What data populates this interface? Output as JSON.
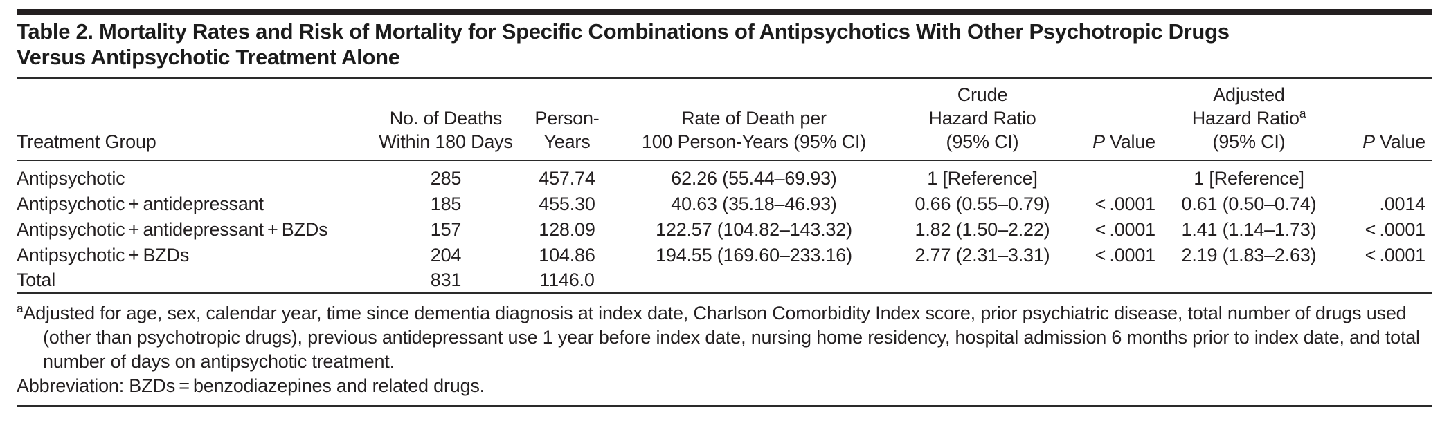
{
  "title": {
    "line1": "Table 2. Mortality Rates and Risk of Mortality for Specific Combinations of Antipsychotics With Other Psychotropic Drugs",
    "line2": "Versus Antipsychotic Treatment Alone"
  },
  "columns": [
    {
      "id": "treatment-group",
      "lines": [
        "Treatment Group"
      ]
    },
    {
      "id": "no-of-deaths",
      "lines": [
        "No. of Deaths",
        "Within 180 Days"
      ]
    },
    {
      "id": "person-years",
      "lines": [
        "Person-Years"
      ]
    },
    {
      "id": "rate-of-death",
      "lines": [
        "Rate of Death per",
        "100 Person-Years (95% CI)"
      ]
    },
    {
      "id": "crude-hazard-ratio",
      "lines": [
        "Crude",
        "Hazard Ratio",
        "(95% CI)"
      ]
    },
    {
      "id": "crude-p-value",
      "p": "P",
      "value": "Value"
    },
    {
      "id": "adjusted-hazard-ratio",
      "lines": [
        "Adjusted",
        "Hazard Ratio",
        "(95% CI)"
      ],
      "sup": "a"
    },
    {
      "id": "adjusted-p-value",
      "p": "P",
      "value": "Value"
    }
  ],
  "rows": [
    {
      "group": "Antipsychotic",
      "deaths": "285",
      "person_years": "457.74",
      "rate": "62.26 (55.44–69.93)",
      "crude_hr": "1 [Reference]",
      "crude_p": "",
      "adjusted_hr": "1 [Reference]",
      "adjusted_p": ""
    },
    {
      "group": "Antipsychotic + antidepressant",
      "deaths": "185",
      "person_years": "455.30",
      "rate": "40.63 (35.18–46.93)",
      "crude_hr": "0.66 (0.55–0.79)",
      "crude_p": "< .0001",
      "adjusted_hr": "0.61 (0.50–0.74)",
      "adjusted_p": ".0014"
    },
    {
      "group": "Antipsychotic + antidepressant + BZDs",
      "deaths": "157",
      "person_years": "128.09",
      "rate": "122.57 (104.82–143.32)",
      "crude_hr": "1.82 (1.50–2.22)",
      "crude_p": "< .0001",
      "adjusted_hr": "1.41 (1.14–1.73)",
      "adjusted_p": "< .0001"
    },
    {
      "group": "Antipsychotic + BZDs",
      "deaths": "204",
      "person_years": "104.86",
      "rate": "194.55 (169.60–233.16)",
      "crude_hr": "2.77 (2.31–3.31)",
      "crude_p": "< .0001",
      "adjusted_hr": "2.19 (1.83–2.63)",
      "adjusted_p": "< .0001"
    },
    {
      "group": "Total",
      "deaths": "831",
      "person_years": "1146.0",
      "rate": "",
      "crude_hr": "",
      "crude_p": "",
      "adjusted_hr": "",
      "adjusted_p": ""
    }
  ],
  "footnotes": {
    "marker": "a",
    "adjusted": "Adjusted for age, sex, calendar year, time since dementia diagnosis at index date, Charlson Comorbidity Index score, prior psychiatric disease, total number of drugs used (other than psychotropic drugs), previous antidepressant use 1 year before index date, nursing home residency, hospital admission 6 months prior to index date, and total number of days on antipsychotic treatment.",
    "abbreviation": "Abbreviation: BZDs = benzodiazepines and related drugs."
  }
}
